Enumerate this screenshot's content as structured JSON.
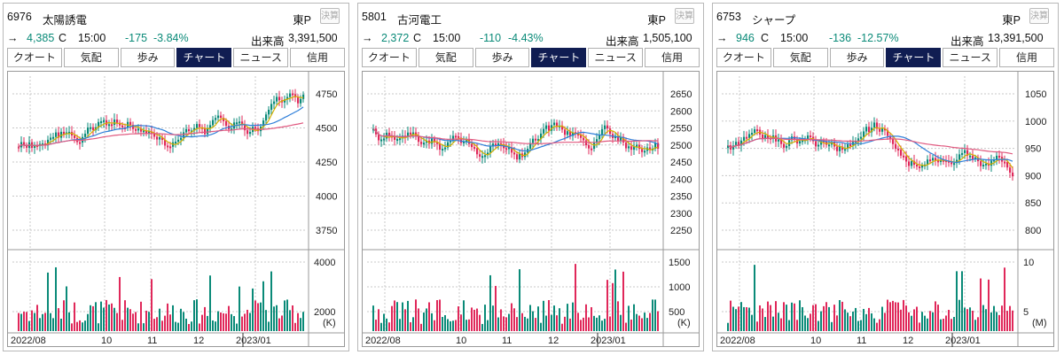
{
  "panels": [
    {
      "code": "6976",
      "name": "太陽誘電",
      "market": "東P",
      "kessan": "決算",
      "arrow": "→",
      "price": "4,385",
      "flag": "C",
      "time": "15:00",
      "change": "-175",
      "change_pct": "-3.84%",
      "volume_label": "出来高",
      "volume": "3,391,500",
      "tabs": [
        "クオート",
        "気配",
        "歩み",
        "チャート",
        "ニュース",
        "信用"
      ],
      "active_tab": "チャート",
      "price_axis": [
        "4750",
        "4500",
        "4250",
        "4000",
        "3750"
      ],
      "vol_axis": [
        "4000",
        "2000"
      ],
      "vol_unit": "(K)",
      "x_labels": [
        "2022/08",
        "10",
        "11",
        "12",
        "2023/01"
      ]
    },
    {
      "code": "5801",
      "name": "古河電工",
      "market": "東P",
      "kessan": "決算",
      "arrow": "→",
      "price": "2,372",
      "flag": "C",
      "time": "15:00",
      "change": "-110",
      "change_pct": "-4.43%",
      "volume_label": "出来高",
      "volume": "1,505,100",
      "tabs": [
        "クオート",
        "気配",
        "歩み",
        "チャート",
        "ニュース",
        "信用"
      ],
      "active_tab": "チャート",
      "price_axis": [
        "2650",
        "2600",
        "2550",
        "2500",
        "2450",
        "2400",
        "2350",
        "2300",
        "2250"
      ],
      "vol_axis": [
        "1500",
        "1000",
        "500"
      ],
      "vol_unit": "(K)",
      "x_labels": [
        "2022/08",
        "10",
        "11",
        "12",
        "2023/01"
      ]
    },
    {
      "code": "6753",
      "name": "シャープ",
      "market": "東P",
      "kessan": "決算",
      "arrow": "→",
      "price": "946",
      "flag": "C",
      "time": "15:00",
      "change": "-136",
      "change_pct": "-12.57%",
      "volume_label": "出来高",
      "volume": "13,391,500",
      "tabs": [
        "クオート",
        "気配",
        "歩み",
        "チャート",
        "ニュース",
        "信用"
      ],
      "active_tab": "チャート",
      "price_axis": [
        "1050",
        "1000",
        "950",
        "900",
        "850",
        "800"
      ],
      "vol_axis": [
        "10",
        "5"
      ],
      "vol_unit": "(M)",
      "x_labels": [
        "2022/08",
        "10",
        "11",
        "12",
        "2023/01"
      ]
    }
  ],
  "colors": {
    "up": "#0a8a78",
    "down": "#e0285a",
    "tab_active": "#101d52",
    "ma_short": "#d4b000",
    "ma_mid": "#2f7fd9",
    "ma_long": "#e05a80"
  }
}
